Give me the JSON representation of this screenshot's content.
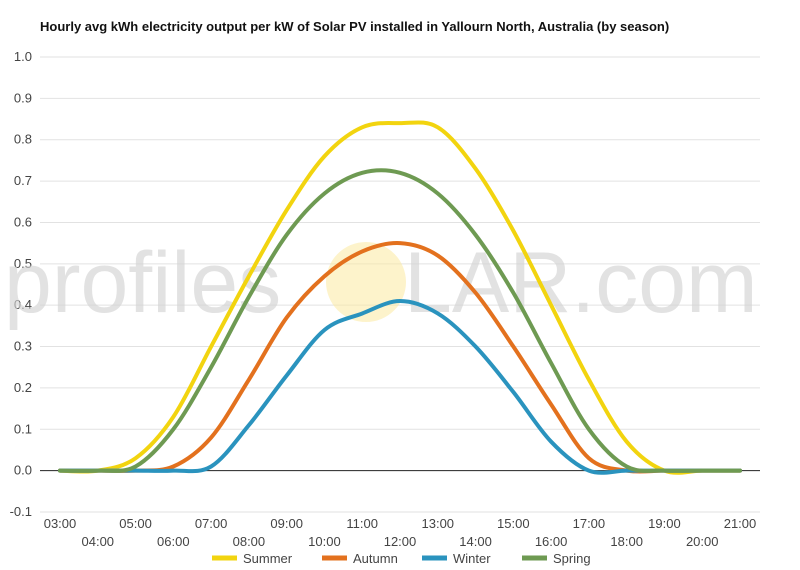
{
  "chart_data": {
    "type": "line",
    "title": "Hourly avg kWh electricity output per kW of Solar PV installed in Yallourn North, Australia (by season)",
    "xlabel": "",
    "ylabel": "",
    "ylim": [
      -0.1,
      1.0
    ],
    "yticks": [
      "-0.1",
      "0.0",
      "0.1",
      "0.2",
      "0.3",
      "0.4",
      "0.5",
      "0.6",
      "0.7",
      "0.8",
      "0.9",
      "1.0"
    ],
    "x": [
      "03:00",
      "04:00",
      "05:00",
      "06:00",
      "07:00",
      "08:00",
      "09:00",
      "10:00",
      "11:00",
      "12:00",
      "13:00",
      "14:00",
      "15:00",
      "16:00",
      "17:00",
      "18:00",
      "19:00",
      "20:00",
      "21:00"
    ],
    "grid": true,
    "legend_position": "bottom",
    "series": [
      {
        "name": "Summer",
        "color": "#f2d40f",
        "values": [
          0.0,
          0.0,
          0.03,
          0.13,
          0.3,
          0.47,
          0.63,
          0.76,
          0.83,
          0.84,
          0.83,
          0.73,
          0.58,
          0.4,
          0.22,
          0.07,
          0.0,
          0.0,
          0.0
        ]
      },
      {
        "name": "Autumn",
        "color": "#e3711e",
        "values": [
          0.0,
          0.0,
          0.0,
          0.01,
          0.08,
          0.22,
          0.37,
          0.47,
          0.53,
          0.55,
          0.52,
          0.43,
          0.3,
          0.16,
          0.03,
          0.0,
          0.0,
          0.0,
          0.0
        ]
      },
      {
        "name": "Winter",
        "color": "#2a93be",
        "values": [
          0.0,
          0.0,
          0.0,
          0.0,
          0.01,
          0.11,
          0.23,
          0.34,
          0.38,
          0.41,
          0.38,
          0.3,
          0.19,
          0.07,
          0.0,
          0.0,
          0.0,
          0.0,
          0.0
        ]
      },
      {
        "name": "Spring",
        "color": "#6e9a52",
        "values": [
          0.0,
          0.0,
          0.01,
          0.1,
          0.25,
          0.42,
          0.57,
          0.67,
          0.72,
          0.72,
          0.67,
          0.57,
          0.43,
          0.26,
          0.1,
          0.01,
          0.0,
          0.0,
          0.0
        ]
      }
    ]
  },
  "watermark": {
    "left": "profiles",
    "right": "LAR.com"
  }
}
